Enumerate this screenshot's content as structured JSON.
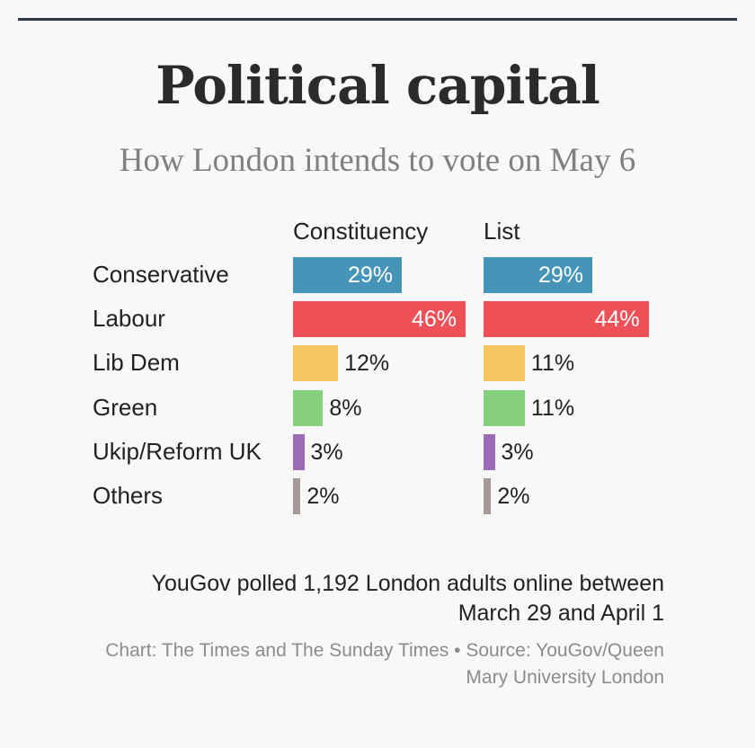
{
  "header": {
    "title": "Political capital",
    "subtitle": "How London intends to vote on May 6"
  },
  "chart_data": {
    "type": "bar",
    "orientation": "horizontal",
    "title": "Political capital",
    "subtitle": "How London intends to vote on May 6",
    "categories": [
      "Conservative",
      "Labour",
      "Lib Dem",
      "Green",
      "Ukip/Reform UK",
      "Others"
    ],
    "series": [
      {
        "name": "Constituency",
        "values": [
          29,
          46,
          12,
          8,
          3,
          2
        ],
        "labels": [
          "29%",
          "46%",
          "12%",
          "8%",
          "3%",
          "2%"
        ]
      },
      {
        "name": "List",
        "values": [
          29,
          44,
          11,
          11,
          3,
          2
        ],
        "labels": [
          "29%",
          "44%",
          "11%",
          "11%",
          "3%",
          "2%"
        ]
      }
    ],
    "colors": [
      "#4695b9",
      "#ee5058",
      "#f5c560",
      "#86cf7d",
      "#9b6bb8",
      "#a79a96"
    ],
    "unit": "%",
    "xlim": [
      0,
      46
    ]
  },
  "footer": {
    "note": "YouGov polled 1,192 London adults online between March 29 and April 1",
    "credit": "Chart: The Times and The Sunday Times • Source: YouGov/Queen Mary University London"
  }
}
